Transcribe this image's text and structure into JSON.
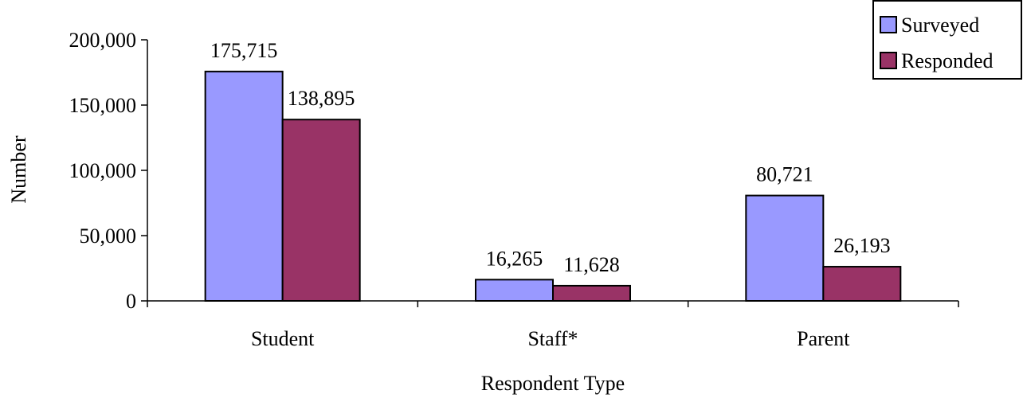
{
  "chart_data": {
    "type": "bar",
    "title": "",
    "xlabel": "Respondent Type",
    "ylabel": "Number",
    "categories": [
      "Student",
      "Staff*",
      "Parent"
    ],
    "series": [
      {
        "name": "Surveyed",
        "color": "#9999ff",
        "values": [
          175715,
          16265,
          80721
        ],
        "labels": [
          "175,715",
          "16,265",
          "80,721"
        ]
      },
      {
        "name": "Responded",
        "color": "#993366",
        "values": [
          138895,
          11628,
          26193
        ],
        "labels": [
          "138,895",
          "11,628",
          "26,193"
        ]
      }
    ],
    "ylim": [
      0,
      200000
    ],
    "yticks": [
      0,
      50000,
      100000,
      150000,
      200000
    ],
    "ytick_labels": [
      "0",
      "50,000",
      "100,000",
      "150,000",
      "200,000"
    ],
    "grid": false,
    "legend_position": "top-right"
  }
}
